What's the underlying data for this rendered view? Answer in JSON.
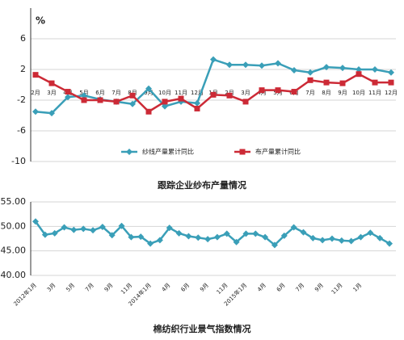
{
  "chart_data": [
    {
      "type": "line",
      "title": "跟踪企业纱布产量情况",
      "y_axis_label": "%",
      "categories": [
        "2月",
        "3月",
        "4月",
        "5月",
        "6月",
        "7月",
        "8月",
        "9月",
        "10月",
        "11月",
        "12月",
        "1月",
        "2月",
        "3月",
        "4月",
        "5月",
        "6月",
        "7月",
        "8月",
        "9月",
        "10月",
        "11月",
        "12月"
      ],
      "series": [
        {
          "name": "纱线产量累计同比",
          "color": "#3a9fb8",
          "marker": "diamond",
          "values": [
            -3.5,
            -3.7,
            -1.6,
            -1.4,
            -1.9,
            -2.2,
            -2.5,
            -0.5,
            -2.8,
            -2.2,
            -2.4,
            3.3,
            2.6,
            2.6,
            2.5,
            2.8,
            1.9,
            1.6,
            2.3,
            2.2,
            2.0,
            2.0,
            1.6
          ]
        },
        {
          "name": "布产量累计同比",
          "color": "#cc2a36",
          "marker": "square",
          "values": [
            1.3,
            0.2,
            -0.9,
            -2.0,
            -2.0,
            -2.2,
            -1.4,
            -3.5,
            -2.2,
            -1.8,
            -3.1,
            -1.3,
            -1.4,
            -2.2,
            -0.7,
            -0.7,
            -0.9,
            0.6,
            0.3,
            0.2,
            1.4,
            0.3,
            0.3
          ]
        }
      ],
      "ylim": [
        -10,
        10
      ],
      "yticks": [
        6,
        2,
        -2,
        -6,
        -10
      ],
      "grid": true,
      "legend": "bottom"
    },
    {
      "type": "line",
      "title": "棉纺织行业景气指数情况",
      "categories": [
        "2012年1月",
        null,
        "3月",
        null,
        "5月",
        null,
        "7月",
        null,
        "9月",
        null,
        "11月",
        null,
        "2014年1月",
        null,
        "4月",
        null,
        "6月",
        null,
        "9月",
        null,
        "11月",
        null,
        "2015年1月",
        null,
        "4月",
        null,
        "6月",
        null,
        "7月",
        null,
        "9月",
        null,
        "11月",
        null,
        "1月",
        null,
        null,
        null
      ],
      "series": [
        {
          "color": "#3a9fb8",
          "marker": "diamond",
          "values": [
            51,
            48.3,
            48.6,
            49.8,
            49.3,
            49.5,
            49.2,
            49.9,
            48.2,
            50.1,
            47.8,
            47.9,
            46.5,
            47.2,
            49.7,
            48.6,
            48,
            47.7,
            47.4,
            47.8,
            48.5,
            46.8,
            48.5,
            48.5,
            47.8,
            46.2,
            48.1,
            49.8,
            48.8,
            47.6,
            47.2,
            47.5,
            47.1,
            47.0,
            47.8,
            48.7,
            47.6,
            46.5
          ]
        }
      ],
      "ylim": [
        40,
        55
      ],
      "yticks": [
        {
          "value": 40,
          "label": "40.00"
        },
        {
          "value": 45,
          "label": "45.00"
        },
        {
          "value": 50,
          "label": "50.00"
        },
        {
          "value": 55,
          "label": "55.00"
        }
      ],
      "grid": true
    }
  ]
}
